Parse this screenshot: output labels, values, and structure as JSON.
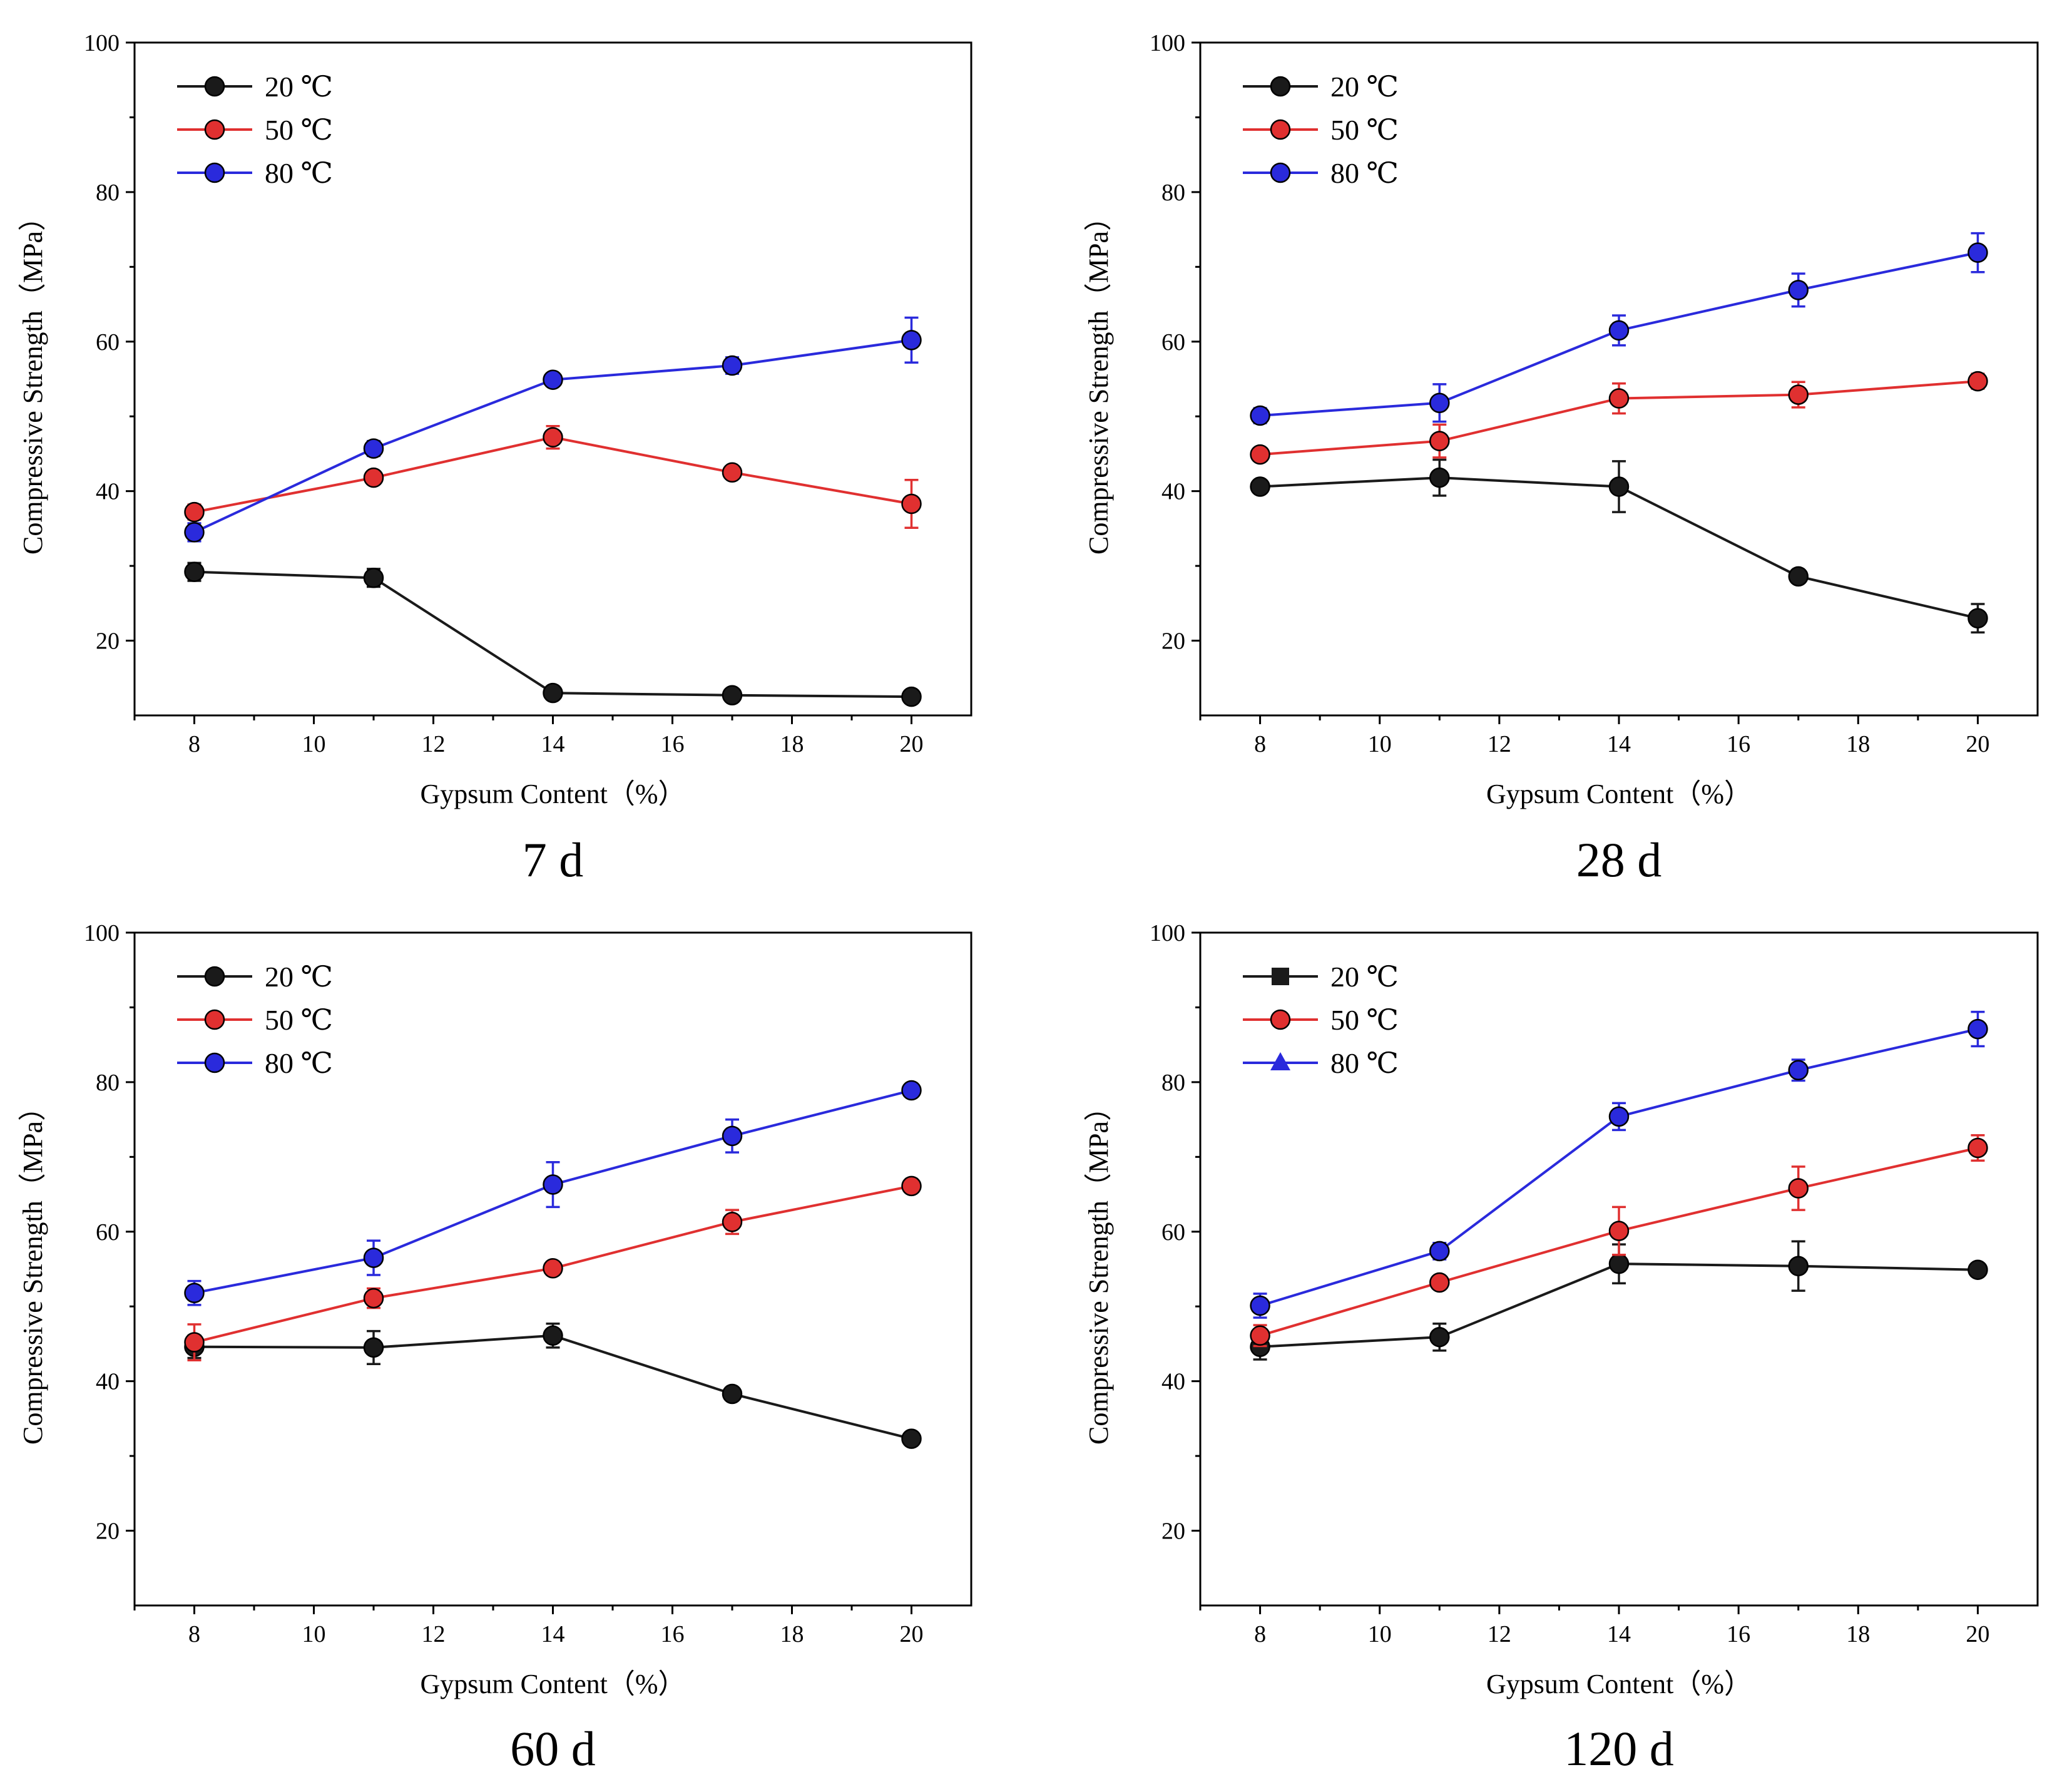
{
  "colors": {
    "20": "#1a1a1a",
    "50": "#e03030",
    "80": "#2a2adc"
  },
  "chart_data": [
    {
      "type": "line",
      "caption": "7 d",
      "xlabel": "Gypsum Content（%）",
      "ylabel": "Compressive Strength（MPa）",
      "xlim": [
        7,
        21
      ],
      "ylim": [
        10,
        100
      ],
      "xticks": [
        "8",
        "10",
        "12",
        "14",
        "16",
        "18",
        "20"
      ],
      "yticks": [
        "20",
        "40",
        "60",
        "80",
        "100"
      ],
      "legend_position": "top-left",
      "marker": "circle",
      "x": [
        8,
        11,
        14,
        17,
        20
      ],
      "series": [
        {
          "name": "20 ℃",
          "color_key": "20",
          "values": [
            29.2,
            28.4,
            13.0,
            12.7,
            12.5
          ],
          "errors": [
            1.2,
            1.2,
            0.6,
            0.5,
            0.5
          ]
        },
        {
          "name": "50 ℃",
          "color_key": "50",
          "values": [
            37.2,
            41.8,
            47.2,
            42.5,
            38.3
          ],
          "errors": [
            1.0,
            0.8,
            1.5,
            0.6,
            3.2
          ]
        },
        {
          "name": "80 ℃",
          "color_key": "80",
          "values": [
            34.5,
            45.7,
            54.9,
            56.8,
            60.2
          ],
          "errors": [
            1.2,
            1.0,
            0.6,
            1.1,
            3.0
          ]
        }
      ]
    },
    {
      "type": "line",
      "caption": "28 d",
      "xlabel": "Gypsum Content（%）",
      "ylabel": "Compressive Strength（MPa）",
      "xlim": [
        7,
        21
      ],
      "ylim": [
        10,
        100
      ],
      "xticks": [
        "8",
        "10",
        "12",
        "14",
        "16",
        "18",
        "20"
      ],
      "yticks": [
        "20",
        "40",
        "60",
        "80",
        "100"
      ],
      "legend_position": "top-left",
      "marker": "circle",
      "x": [
        8,
        11,
        14,
        17,
        20
      ],
      "series": [
        {
          "name": "20 ℃",
          "color_key": "20",
          "values": [
            40.6,
            41.8,
            40.6,
            28.6,
            23.0
          ],
          "errors": [
            0.6,
            2.4,
            3.4,
            0.8,
            1.9
          ]
        },
        {
          "name": "50 ℃",
          "color_key": "50",
          "values": [
            44.9,
            46.7,
            52.4,
            52.9,
            54.7
          ],
          "errors": [
            0.8,
            2.2,
            2.0,
            1.7,
            1.0
          ]
        },
        {
          "name": "80 ℃",
          "color_key": "80",
          "values": [
            50.1,
            51.8,
            61.5,
            66.9,
            71.9
          ],
          "errors": [
            1.0,
            2.5,
            2.0,
            2.2,
            2.6
          ]
        }
      ]
    },
    {
      "type": "line",
      "caption": "60 d",
      "xlabel": "Gypsum Content（%）",
      "ylabel": "Compressive Strength（MPa）",
      "xlim": [
        7,
        21
      ],
      "ylim": [
        10,
        100
      ],
      "xticks": [
        "8",
        "10",
        "12",
        "14",
        "16",
        "18",
        "20"
      ],
      "yticks": [
        "20",
        "40",
        "60",
        "80",
        "100"
      ],
      "legend_position": "top-left",
      "marker": "circle",
      "x": [
        8,
        11,
        14,
        17,
        20
      ],
      "series": [
        {
          "name": "20 ℃",
          "color_key": "20",
          "values": [
            44.6,
            44.5,
            46.1,
            38.3,
            32.3
          ],
          "errors": [
            1.5,
            2.2,
            1.6,
            0.8,
            0.5
          ]
        },
        {
          "name": "50 ℃",
          "color_key": "50",
          "values": [
            45.2,
            51.1,
            55.1,
            61.3,
            66.1
          ],
          "errors": [
            2.4,
            1.3,
            0.9,
            1.6,
            0.6
          ]
        },
        {
          "name": "80 ℃",
          "color_key": "80",
          "values": [
            51.8,
            56.5,
            66.3,
            72.8,
            78.9
          ],
          "errors": [
            1.6,
            2.3,
            3.0,
            2.2,
            0.5
          ]
        }
      ]
    },
    {
      "type": "line",
      "caption": "120 d",
      "xlabel": "Gypsum Content（%）",
      "ylabel": "Compressive Strength（MPa）",
      "xlim": [
        7,
        21
      ],
      "ylim": [
        10,
        100
      ],
      "xticks": [
        "8",
        "10",
        "12",
        "14",
        "16",
        "18",
        "20"
      ],
      "yticks": [
        "20",
        "40",
        "60",
        "80",
        "100"
      ],
      "legend_position": "top-left",
      "marker": "circle",
      "legend_markers": [
        "square",
        "circle",
        "triangle"
      ],
      "x": [
        8,
        11,
        14,
        17,
        20
      ],
      "series": [
        {
          "name": "20 ℃",
          "color_key": "20",
          "values": [
            44.6,
            45.9,
            55.7,
            55.4,
            54.9
          ],
          "errors": [
            1.7,
            1.8,
            2.6,
            3.3,
            0.8
          ]
        },
        {
          "name": "50 ℃",
          "color_key": "50",
          "values": [
            46.1,
            53.2,
            60.1,
            65.8,
            71.2
          ],
          "errors": [
            1.4,
            0.8,
            3.2,
            2.9,
            1.7
          ]
        },
        {
          "name": "80 ℃",
          "color_key": "80",
          "values": [
            50.1,
            57.4,
            75.4,
            81.6,
            87.1
          ],
          "errors": [
            1.6,
            1.1,
            1.8,
            1.4,
            2.3
          ]
        }
      ]
    }
  ]
}
